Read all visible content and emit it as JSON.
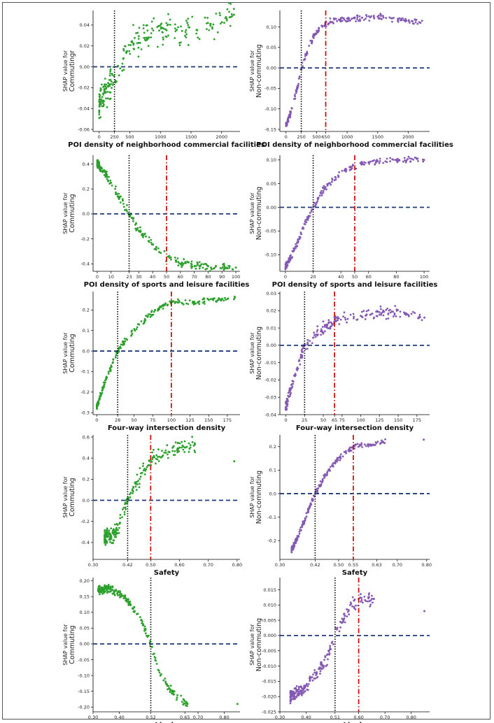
{
  "colors": {
    "commuting": "#2ca02c",
    "noncommuting": "#8459b3",
    "zero_line": "#1f3a7a",
    "threshold_black": "#000000",
    "threshold_red": "#cc1111"
  },
  "chart_data": [
    {
      "id": "c1",
      "type": "scatter",
      "group": "commuting",
      "ylabel1": "SHAP value for",
      "ylabel2": "Commutingr",
      "xlabel": "POI density of neighborhood commercial facilities",
      "xlim": [
        -100,
        2300
      ],
      "ylim": [
        -0.062,
        0.054
      ],
      "xticks": [
        "0",
        "250",
        "500",
        "1000",
        "1500",
        "2000"
      ],
      "yticks": [
        "0.04",
        "0.02",
        "0.00",
        "-0.02",
        "-0.04",
        "-0.06"
      ],
      "black_threshold": 250,
      "red_threshold": null,
      "curve": {
        "x": [
          0,
          100,
          200,
          300,
          400,
          500,
          600,
          750,
          1100,
          1600,
          2200
        ],
        "y": [
          -0.035,
          -0.025,
          -0.015,
          -0.005,
          0.01,
          0.02,
          0.026,
          0.03,
          0.035,
          0.035,
          0.05
        ]
      },
      "xmax": 2250,
      "spread": 0.012
    },
    {
      "id": "c2",
      "type": "scatter",
      "group": "noncommuting",
      "ylabel1": "SHAP value for",
      "ylabel2": "Non-commuting",
      "xlabel": "POI density of neighborhood commercial facilities",
      "xlim": [
        -100,
        2350
      ],
      "ylim": [
        -0.155,
        0.14
      ],
      "xticks": [
        "0",
        "250",
        "500",
        "650",
        "1000",
        "1500",
        "2000"
      ],
      "yticks": [
        "0.10",
        "0.05",
        "0.00",
        "-0.05",
        "-0.10",
        "-0.15"
      ],
      "black_threshold": 250,
      "red_threshold": 650,
      "curve": {
        "x": [
          0,
          100,
          200,
          250,
          300,
          400,
          500,
          600,
          650,
          800,
          1000,
          1500,
          2200
        ],
        "y": [
          -0.14,
          -0.1,
          -0.04,
          0.0,
          0.02,
          0.06,
          0.09,
          0.105,
          0.11,
          0.115,
          0.12,
          0.125,
          0.11
        ]
      },
      "xmax": 2250,
      "spread": 0.006
    },
    {
      "id": "c3",
      "type": "scatter",
      "group": "commuting",
      "ylabel1": "SHAP value for",
      "ylabel2": "Commuting",
      "xlabel": "POI density of sports and leisure facilities",
      "xlim": [
        -3,
        103
      ],
      "ylim": [
        -0.46,
        0.47
      ],
      "xticks": [
        "0",
        "10",
        "23",
        "30",
        "40",
        "50",
        "60",
        "70",
        "80",
        "90",
        "100"
      ],
      "yticks": [
        "0.4",
        "0.2",
        "0.0",
        "-0.2",
        "-0.4"
      ],
      "black_threshold": 23,
      "red_threshold": 50,
      "curve": {
        "x": [
          0,
          5,
          10,
          15,
          20,
          23,
          30,
          40,
          50,
          60,
          80,
          100
        ],
        "y": [
          0.4,
          0.33,
          0.25,
          0.15,
          0.05,
          0.0,
          -0.13,
          -0.25,
          -0.35,
          -0.4,
          -0.42,
          -0.43
        ]
      },
      "xmax": 100,
      "spread": 0.03
    },
    {
      "id": "c4",
      "type": "scatter",
      "group": "noncommuting",
      "ylabel1": "SHAP value for",
      "ylabel2": "Non-commuting",
      "xlabel": "POI density of sports and leisure facilities",
      "xlim": [
        -4,
        104
      ],
      "ylim": [
        -0.135,
        0.11
      ],
      "xticks": [
        "0",
        "20",
        "40",
        "50",
        "60",
        "80",
        "100"
      ],
      "yticks": [
        "0.10",
        "0.05",
        "0.00",
        "-0.05",
        "-0.10"
      ],
      "black_threshold": 20,
      "red_threshold": 50,
      "curve": {
        "x": [
          0,
          5,
          10,
          15,
          20,
          25,
          30,
          40,
          50,
          60,
          80,
          100
        ],
        "y": [
          -0.125,
          -0.1,
          -0.065,
          -0.03,
          0.0,
          0.025,
          0.045,
          0.075,
          0.088,
          0.095,
          0.1,
          0.1
        ]
      },
      "xmax": 100,
      "spread": 0.006
    },
    {
      "id": "c5",
      "type": "scatter",
      "group": "commuting",
      "ylabel1": "SHAP value for",
      "ylabel2": "Commuting",
      "xlabel": "Four-way intersection density",
      "xlim": [
        -5,
        192
      ],
      "ylim": [
        -0.31,
        0.29
      ],
      "xticks": [
        "0",
        "28",
        "50",
        "75",
        "100",
        "125",
        "150",
        "175"
      ],
      "yticks": [
        "0.2",
        "0.1",
        "0.0",
        "-0.1",
        "-0.2",
        "-0.3"
      ],
      "black_threshold": 28,
      "red_threshold": 100,
      "curve": {
        "x": [
          0,
          10,
          20,
          28,
          40,
          55,
          70,
          85,
          100,
          130,
          185
        ],
        "y": [
          -0.27,
          -0.16,
          -0.07,
          0.0,
          0.06,
          0.12,
          0.17,
          0.21,
          0.24,
          0.24,
          0.26
        ]
      },
      "xmax": 185,
      "spread": 0.012
    },
    {
      "id": "c6",
      "type": "scatter",
      "group": "noncommuting",
      "ylabel1": "SHAP value for",
      "ylabel2": "Non-commuting",
      "xlabel": "Four-way intersection density",
      "xlim": [
        -8,
        192
      ],
      "ylim": [
        -0.04,
        0.031
      ],
      "xticks": [
        "0",
        "25",
        "50",
        "65",
        "75",
        "100",
        "125",
        "150",
        "175"
      ],
      "yticks": [
        "0.03",
        "0.02",
        "0.01",
        "0.00",
        "-0.01",
        "-0.02",
        "-0.03",
        "-0.04"
      ],
      "black_threshold": 25,
      "red_threshold": 65,
      "curve": {
        "x": [
          0,
          10,
          20,
          25,
          30,
          40,
          50,
          65,
          80,
          100,
          130,
          185
        ],
        "y": [
          -0.035,
          -0.02,
          -0.007,
          0.0,
          0.0,
          0.006,
          0.01,
          0.014,
          0.016,
          0.017,
          0.02,
          0.016
        ]
      },
      "xmax": 185,
      "spread": 0.003
    },
    {
      "id": "c7",
      "type": "scatter",
      "group": "commuting",
      "ylabel1": "SHAP value for",
      "ylabel2": "Commuting",
      "xlabel": "Safety",
      "xlim": [
        0.3,
        0.81
      ],
      "ylim": [
        -0.56,
        0.62
      ],
      "xticks": [
        "0.30",
        "0.42",
        "0.50",
        "0.60",
        "0.70",
        "0.80"
      ],
      "yticks": [
        "0.6",
        "0.4",
        "0.2",
        "0.0",
        "-0.2",
        "-0.4"
      ],
      "black_threshold": 0.42,
      "red_threshold": 0.5,
      "curve": {
        "x": [
          0.34,
          0.37,
          0.39,
          0.42,
          0.45,
          0.48,
          0.5,
          0.55,
          0.6,
          0.65,
          0.79
        ],
        "y": [
          -0.35,
          -0.33,
          -0.25,
          0.0,
          0.17,
          0.3,
          0.38,
          0.47,
          0.5,
          0.52,
          0.37
        ]
      },
      "xmax": 0.66,
      "spread": 0.06
    },
    {
      "id": "c8",
      "type": "scatter",
      "group": "noncommuting",
      "ylabel1": "SHAP value for",
      "ylabel2": "Non-commuting",
      "xlabel": "Safety",
      "xlim": [
        0.3,
        0.81
      ],
      "ylim": [
        -0.28,
        0.25
      ],
      "xticks": [
        "0.30",
        "0.42",
        "0.50",
        "0.55",
        "0.63",
        "0.70",
        "0.80"
      ],
      "yticks": [
        "0.2",
        "0.1",
        "0.0",
        "-0.1",
        "-0.2"
      ],
      "black_threshold": 0.42,
      "red_threshold": 0.55,
      "curve": {
        "x": [
          0.34,
          0.37,
          0.4,
          0.42,
          0.45,
          0.5,
          0.55,
          0.6,
          0.65,
          0.79
        ],
        "y": [
          -0.24,
          -0.16,
          -0.06,
          0.0,
          0.07,
          0.15,
          0.2,
          0.21,
          0.22,
          0.23
        ]
      },
      "xmax": 0.66,
      "spread": 0.01
    },
    {
      "id": "c9",
      "type": "scatter",
      "group": "commuting",
      "ylabel1": "SHAP value for",
      "ylabel2": "Commuting",
      "xlabel": "Lively",
      "xlim": [
        0.3,
        0.86
      ],
      "ylim": [
        -0.215,
        0.21
      ],
      "xticks": [
        "0.30",
        "0.40",
        "0.52",
        "0.65",
        "0.70",
        "0.80"
      ],
      "yticks": [
        "0.20",
        "0.15",
        "0.10",
        "0.05",
        "0.00",
        "-0.05",
        "-0.10",
        "-0.15",
        "-0.20"
      ],
      "black_threshold": 0.52,
      "red_threshold": null,
      "curve": {
        "x": [
          0.32,
          0.36,
          0.4,
          0.44,
          0.48,
          0.52,
          0.55,
          0.58,
          0.62,
          0.66,
          0.85
        ],
        "y": [
          0.17,
          0.175,
          0.16,
          0.13,
          0.08,
          0.0,
          -0.08,
          -0.13,
          -0.17,
          -0.19,
          -0.19
        ]
      },
      "xmax": 0.66,
      "spread": 0.01
    },
    {
      "id": "c10",
      "type": "scatter",
      "group": "noncommuting",
      "ylabel1": "SHAP value for",
      "ylabel2": "Non-commuting",
      "xlabel": "Lively",
      "xlim": [
        0.3,
        0.87
      ],
      "ylim": [
        -0.025,
        0.019
      ],
      "xticks": [
        "0.30",
        "0.40",
        "0.51",
        "0.60",
        "0.70",
        "0.80"
      ],
      "yticks": [
        "0.015",
        "0.010",
        "0.005",
        "0.000",
        "-0.005",
        "-0.010",
        "-0.015",
        "-0.020",
        "-0.025"
      ],
      "black_threshold": 0.51,
      "red_threshold": 0.6,
      "curve": {
        "x": [
          0.34,
          0.38,
          0.42,
          0.46,
          0.49,
          0.51,
          0.53,
          0.56,
          0.6,
          0.65,
          0.85
        ],
        "y": [
          -0.02,
          -0.018,
          -0.015,
          -0.01,
          -0.005,
          0.0,
          0.004,
          0.008,
          0.012,
          0.012,
          0.008
        ]
      },
      "xmax": 0.66,
      "spread": 0.002
    }
  ]
}
